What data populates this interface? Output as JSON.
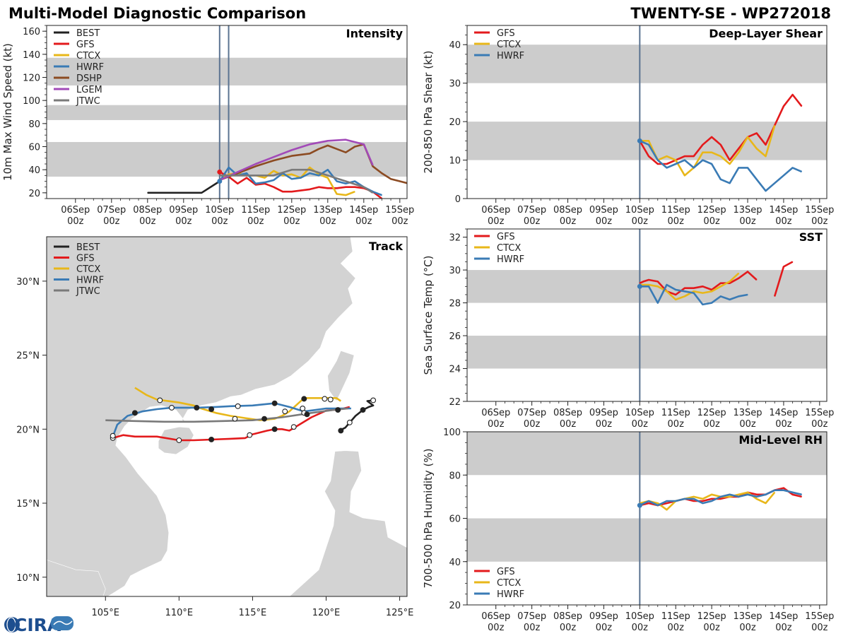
{
  "header": {
    "title": "Multi-Model Diagnostic Comparison",
    "storm_id": "TWENTY-SE - WP272018",
    "logo_text": "CIRA"
  },
  "colors": {
    "BEST": "#222222",
    "GFS": "#e31a1c",
    "CTCX": "#e8b71a",
    "HWRF": "#3a7bb5",
    "DSHP": "#8c4b22",
    "LGEM": "#a24ab8",
    "JTWC": "#7a7a7a",
    "band": "#cccccc",
    "land": "#d3d3d3",
    "initline": "#5b7391"
  },
  "time_axis": {
    "labels_day": [
      "06Sep",
      "07Sep",
      "08Sep",
      "09Sep",
      "10Sep",
      "11Sep",
      "12Sep",
      "13Sep",
      "14Sep",
      "15Sep"
    ],
    "label_hour": "00z"
  },
  "chart_data": [
    {
      "id": "intensity",
      "type": "line",
      "title": "Intensity",
      "ylabel": "10m Max Wind Speed (kt)",
      "xlim": [
        -0.8,
        9.2
      ],
      "ylim": [
        15,
        165
      ],
      "yticks": [
        20,
        40,
        60,
        80,
        100,
        120,
        140,
        160
      ],
      "bands": [
        [
          34,
          64
        ],
        [
          83,
          96
        ],
        [
          113,
          137
        ]
      ],
      "init_lines": [
        4.0,
        4.25
      ],
      "legend": [
        "BEST",
        "GFS",
        "CTCX",
        "HWRF",
        "DSHP",
        "LGEM",
        "JTWC"
      ],
      "series": [
        {
          "name": "BEST",
          "x": [
            2.0,
            2.5,
            3.0,
            3.5,
            4.0
          ],
          "y": [
            20,
            20,
            20,
            20,
            30
          ]
        },
        {
          "name": "GFS",
          "x": [
            4.0,
            4.25,
            4.5,
            4.75,
            5.0,
            5.25,
            5.5,
            5.75,
            6.0,
            6.25,
            6.5,
            6.75,
            7.0,
            7.25,
            7.5,
            7.75,
            8.0,
            8.25,
            8.5
          ],
          "y": [
            38,
            34,
            28,
            33,
            27,
            28,
            25,
            21,
            21,
            22,
            23,
            25,
            24,
            24,
            25,
            25,
            24,
            21,
            15
          ]
        },
        {
          "name": "CTCX",
          "x": [
            4.0,
            4.25,
            4.5,
            4.75,
            5.0,
            5.25,
            5.5,
            5.75,
            6.0,
            6.25,
            6.5,
            6.75,
            7.0,
            7.25,
            7.5,
            7.75
          ],
          "y": [
            31,
            36,
            37,
            35,
            35,
            33,
            39,
            35,
            36,
            33,
            42,
            36,
            33,
            19,
            18,
            21
          ]
        },
        {
          "name": "HWRF",
          "x": [
            4.0,
            4.25,
            4.5,
            4.75,
            5.0,
            5.25,
            5.5,
            5.75,
            6.0,
            6.25,
            6.5,
            6.75,
            7.0,
            7.25,
            7.5,
            7.75,
            8.0,
            8.25,
            8.5
          ],
          "y": [
            30,
            42,
            35,
            37,
            28,
            29,
            31,
            37,
            32,
            33,
            37,
            35,
            40,
            30,
            28,
            30,
            25,
            21,
            18
          ]
        },
        {
          "name": "DSHP",
          "x": [
            4.0,
            4.5,
            5.0,
            5.5,
            6.0,
            6.5,
            6.75,
            7.0,
            7.25,
            7.5,
            7.75,
            8.0,
            8.25,
            8.5,
            8.75,
            9.0,
            9.25
          ],
          "y": [
            31,
            37,
            43,
            48,
            52,
            54,
            58,
            61,
            58,
            55,
            60,
            62,
            43,
            37,
            32,
            30,
            28
          ]
        },
        {
          "name": "LGEM",
          "x": [
            4.0,
            4.5,
            5.0,
            5.5,
            6.0,
            6.5,
            7.0,
            7.5,
            7.75,
            8.0,
            8.25
          ],
          "y": [
            31,
            38,
            45,
            51,
            57,
            62,
            65,
            66,
            64,
            62,
            44
          ]
        },
        {
          "name": "JTWC",
          "x": [
            4.0,
            4.5,
            5.0,
            5.5,
            6.0,
            6.5,
            7.0,
            7.5,
            8.0,
            8.25
          ],
          "y": [
            35,
            35,
            35,
            35,
            40,
            40,
            35,
            30,
            25,
            20
          ]
        }
      ]
    },
    {
      "id": "shear",
      "type": "line",
      "title": "Deep-Layer Shear",
      "ylabel": "200-850 hPa Shear (kt)",
      "xlim": [
        -0.8,
        9.2
      ],
      "ylim": [
        0,
        45
      ],
      "yticks": [
        0,
        10,
        20,
        30,
        40
      ],
      "bands": [
        [
          10,
          20
        ],
        [
          30,
          40
        ]
      ],
      "init_lines": [
        4.0
      ],
      "legend": [
        "GFS",
        "CTCX",
        "HWRF"
      ],
      "series": [
        {
          "name": "GFS",
          "x": [
            4.0,
            4.25,
            4.5,
            4.75,
            5.0,
            5.25,
            5.5,
            5.75,
            6.0,
            6.25,
            6.5,
            6.75,
            7.0,
            7.25,
            7.5,
            7.75,
            8.0,
            8.25,
            8.5
          ],
          "y": [
            15,
            11,
            9,
            9,
            10,
            11,
            11,
            14,
            16,
            14,
            10,
            13,
            16,
            17,
            14,
            19,
            24,
            27,
            24
          ]
        },
        {
          "name": "CTCX",
          "x": [
            4.0,
            4.25,
            4.5,
            4.75,
            5.0,
            5.25,
            5.5,
            5.75,
            6.0,
            6.25,
            6.5,
            6.75,
            7.0,
            7.25,
            7.5,
            7.75
          ],
          "y": [
            15,
            15,
            10,
            11,
            10,
            6,
            8,
            12,
            12,
            11,
            9,
            12,
            16,
            13,
            11,
            19
          ]
        },
        {
          "name": "HWRF",
          "x": [
            4.0,
            4.25,
            4.5,
            4.75,
            5.0,
            5.25,
            5.5,
            5.75,
            6.0,
            6.25,
            6.5,
            6.75,
            7.0,
            7.25,
            7.5,
            7.75,
            8.0,
            8.25,
            8.5
          ],
          "y": [
            15,
            14,
            10,
            8,
            9,
            10,
            8,
            10,
            9,
            5,
            4,
            8,
            8,
            5,
            2,
            4,
            6,
            8,
            7
          ]
        }
      ]
    },
    {
      "id": "sst",
      "type": "line",
      "title": "SST",
      "ylabel": "Sea Surface Temp (°C)",
      "xlim": [
        -0.8,
        9.2
      ],
      "ylim": [
        22,
        32.5
      ],
      "yticks": [
        22,
        24,
        26,
        28,
        30,
        32
      ],
      "bands": [
        [
          24,
          26
        ],
        [
          28,
          30
        ]
      ],
      "init_lines": [
        4.0
      ],
      "legend": [
        "GFS",
        "CTCX",
        "HWRF"
      ],
      "series": [
        {
          "name": "GFS",
          "x": [
            4.0,
            4.1,
            4.25,
            4.5,
            4.75,
            5.0,
            5.25,
            5.5,
            5.75,
            6.0,
            6.25,
            6.5,
            6.75,
            7.0,
            7.25,
            null,
            7.75,
            8.0,
            8.25
          ],
          "y": [
            29.2,
            29.3,
            29.4,
            29.3,
            28.7,
            28.5,
            28.9,
            28.9,
            29.0,
            28.8,
            29.2,
            29.2,
            29.5,
            29.9,
            29.4,
            null,
            28.4,
            30.2,
            30.5
          ]
        },
        {
          "name": "CTCX",
          "x": [
            4.0,
            4.25,
            4.5,
            4.75,
            5.0,
            5.25,
            5.5,
            5.75,
            6.0,
            6.25,
            6.5,
            6.75
          ],
          "y": [
            29.1,
            29.1,
            29.0,
            28.7,
            28.2,
            28.4,
            28.7,
            28.6,
            28.7,
            29.0,
            29.3,
            29.8
          ]
        },
        {
          "name": "HWRF",
          "x": [
            4.0,
            4.25,
            4.5,
            4.75,
            5.0,
            5.25,
            5.5,
            5.75,
            6.0,
            6.25,
            6.5,
            6.75,
            7.0
          ],
          "y": [
            29.0,
            29.0,
            28.0,
            29.1,
            28.8,
            28.7,
            28.6,
            27.9,
            28.0,
            28.4,
            28.2,
            28.4,
            28.5
          ]
        }
      ]
    },
    {
      "id": "rh",
      "type": "line",
      "title": "Mid-Level RH",
      "ylabel": "700-500 hPa Humidity (%)",
      "xlim": [
        -0.8,
        9.2
      ],
      "ylim": [
        20,
        100
      ],
      "yticks": [
        20,
        40,
        60,
        80,
        100
      ],
      "bands": [
        [
          40,
          60
        ],
        [
          80,
          100
        ]
      ],
      "init_lines": [
        4.0
      ],
      "legend": [
        "GFS",
        "CTCX",
        "HWRF"
      ],
      "legend_loc": "lower-left",
      "series": [
        {
          "name": "GFS",
          "x": [
            4.0,
            4.25,
            4.5,
            4.75,
            5.0,
            5.25,
            5.5,
            5.75,
            6.0,
            6.25,
            6.5,
            6.75,
            7.0,
            7.25,
            7.5,
            7.75,
            8.0,
            8.25,
            8.5
          ],
          "y": [
            66,
            67,
            66,
            67,
            68,
            69,
            68,
            68,
            69,
            69,
            70,
            70,
            72,
            71,
            71,
            73,
            74,
            71,
            70
          ]
        },
        {
          "name": "CTCX",
          "x": [
            4.0,
            4.25,
            4.5,
            4.75,
            5.0,
            5.25,
            5.5,
            5.75,
            6.0,
            6.25,
            6.5,
            6.75,
            7.0,
            7.25,
            7.5,
            7.75
          ],
          "y": [
            67,
            68,
            67,
            64,
            68,
            69,
            70,
            69,
            71,
            70,
            70,
            71,
            72,
            69,
            67,
            72
          ]
        },
        {
          "name": "HWRF",
          "x": [
            4.0,
            4.25,
            4.5,
            4.75,
            5.0,
            5.25,
            5.5,
            5.75,
            6.0,
            6.25,
            6.5,
            6.75,
            7.0,
            7.25,
            7.5,
            7.75,
            8.0,
            8.25,
            8.5
          ],
          "y": [
            66,
            68,
            66,
            68,
            68,
            69,
            69,
            67,
            68,
            70,
            71,
            70,
            71,
            70,
            71,
            73,
            73,
            72,
            71
          ]
        }
      ]
    },
    {
      "id": "track",
      "type": "map",
      "title": "Track",
      "xlim": [
        101,
        125.5
      ],
      "ylim": [
        8.7,
        33
      ],
      "xticks": [
        105,
        110,
        115,
        120,
        125
      ],
      "xtick_labels": [
        "105°E",
        "110°E",
        "115°E",
        "120°E",
        "125°E"
      ],
      "yticks": [
        10,
        15,
        20,
        25,
        30
      ],
      "ytick_labels": [
        "10°N",
        "15°N",
        "20°N",
        "25°N",
        "30°N"
      ],
      "legend": [
        "BEST",
        "GFS",
        "CTCX",
        "HWRF",
        "JTWC"
      ],
      "series": [
        {
          "name": "BEST",
          "lon": [
            120.9,
            121.3,
            122.0,
            122.5,
            122.9,
            123.2,
            122.8,
            123.2
          ],
          "lat": [
            19.9,
            20.1,
            20.9,
            21.3,
            21.5,
            21.6,
            21.9,
            21.95
          ]
        },
        {
          "name": "GFS",
          "lon": [
            105.5,
            106.2,
            107.0,
            108.5,
            110.0,
            111.0,
            112.2,
            113.5,
            114.5,
            115.0,
            116.0,
            116.5,
            117.0,
            117.5,
            118.0,
            119.0,
            120.0,
            121.0,
            121.6
          ],
          "lat": [
            19.4,
            19.6,
            19.5,
            19.5,
            19.25,
            19.25,
            19.3,
            19.35,
            19.4,
            19.65,
            19.9,
            20.0,
            20.0,
            19.9,
            20.2,
            20.8,
            21.25,
            21.35,
            21.5
          ]
        },
        {
          "name": "CTCX",
          "lon": [
            107.0,
            107.8,
            108.5,
            110.0,
            111.0,
            111.5,
            112.5,
            113.5,
            114.5,
            115.5,
            116.5,
            117.0,
            117.5,
            118.5,
            119.8,
            120.7,
            121.0
          ],
          "lat": [
            22.8,
            22.3,
            22.0,
            21.8,
            21.6,
            21.4,
            21.1,
            20.9,
            20.75,
            20.6,
            20.7,
            20.9,
            21.2,
            22.1,
            22.1,
            22.1,
            21.9
          ]
        },
        {
          "name": "HWRF",
          "lon": [
            105.5,
            105.8,
            106.5,
            107.5,
            108.5,
            109.5,
            110.5,
            111.2,
            112.5,
            113.5,
            115.0,
            116.0,
            116.5,
            117.5,
            118.5,
            119.3,
            120.0,
            121.0,
            121.7
          ],
          "lat": [
            19.5,
            20.3,
            20.9,
            21.2,
            21.35,
            21.45,
            21.45,
            21.45,
            21.5,
            21.55,
            21.6,
            21.7,
            21.75,
            21.5,
            21.2,
            21.3,
            21.4,
            21.4,
            21.4
          ]
        },
        {
          "name": "JTWC",
          "lon": [
            105.0,
            107.0,
            109.0,
            111.0,
            113.0,
            115.0,
            117.0,
            119.0,
            120.5,
            121.5
          ],
          "lat": [
            20.6,
            20.55,
            20.5,
            20.5,
            20.55,
            20.6,
            20.8,
            21.1,
            21.3,
            21.4
          ]
        }
      ],
      "markers": [
        {
          "lon": 121.0,
          "lat": 19.9,
          "filled": true
        },
        {
          "lon": 122.5,
          "lat": 21.3,
          "filled": true
        },
        {
          "lon": 123.2,
          "lat": 21.95,
          "filled": false
        },
        {
          "lon": 105.5,
          "lat": 19.4,
          "filled": false
        },
        {
          "lon": 110.0,
          "lat": 19.25,
          "filled": false
        },
        {
          "lon": 112.2,
          "lat": 19.3,
          "filled": true
        },
        {
          "lon": 114.8,
          "lat": 19.6,
          "filled": false
        },
        {
          "lon": 116.5,
          "lat": 20.0,
          "filled": true
        },
        {
          "lon": 117.8,
          "lat": 20.15,
          "filled": false
        },
        {
          "lon": 121.6,
          "lat": 20.45,
          "filled": false
        },
        {
          "lon": 107.0,
          "lat": 21.1,
          "filled": true
        },
        {
          "lon": 108.7,
          "lat": 21.95,
          "filled": false
        },
        {
          "lon": 109.5,
          "lat": 21.45,
          "filled": false
        },
        {
          "lon": 111.2,
          "lat": 21.45,
          "filled": true
        },
        {
          "lon": 112.2,
          "lat": 21.35,
          "filled": true
        },
        {
          "lon": 114.0,
          "lat": 21.55,
          "filled": false
        },
        {
          "lon": 116.5,
          "lat": 21.75,
          "filled": true
        },
        {
          "lon": 118.4,
          "lat": 21.4,
          "filled": false
        },
        {
          "lon": 117.2,
          "lat": 21.2,
          "filled": false
        },
        {
          "lon": 118.5,
          "lat": 22.05,
          "filled": true
        },
        {
          "lon": 119.9,
          "lat": 22.05,
          "filled": false
        },
        {
          "lon": 120.3,
          "lat": 22.0,
          "filled": false
        },
        {
          "lon": 113.8,
          "lat": 20.7,
          "filled": false
        },
        {
          "lon": 115.8,
          "lat": 20.7,
          "filled": true
        },
        {
          "lon": 118.5,
          "lat": 21.1,
          "filled": false
        },
        {
          "lon": 120.8,
          "lat": 21.3,
          "filled": true
        },
        {
          "lon": 105.5,
          "lat": 19.55,
          "filled": false
        },
        {
          "lon": 118.7,
          "lat": 21.0,
          "filled": true
        }
      ]
    }
  ]
}
